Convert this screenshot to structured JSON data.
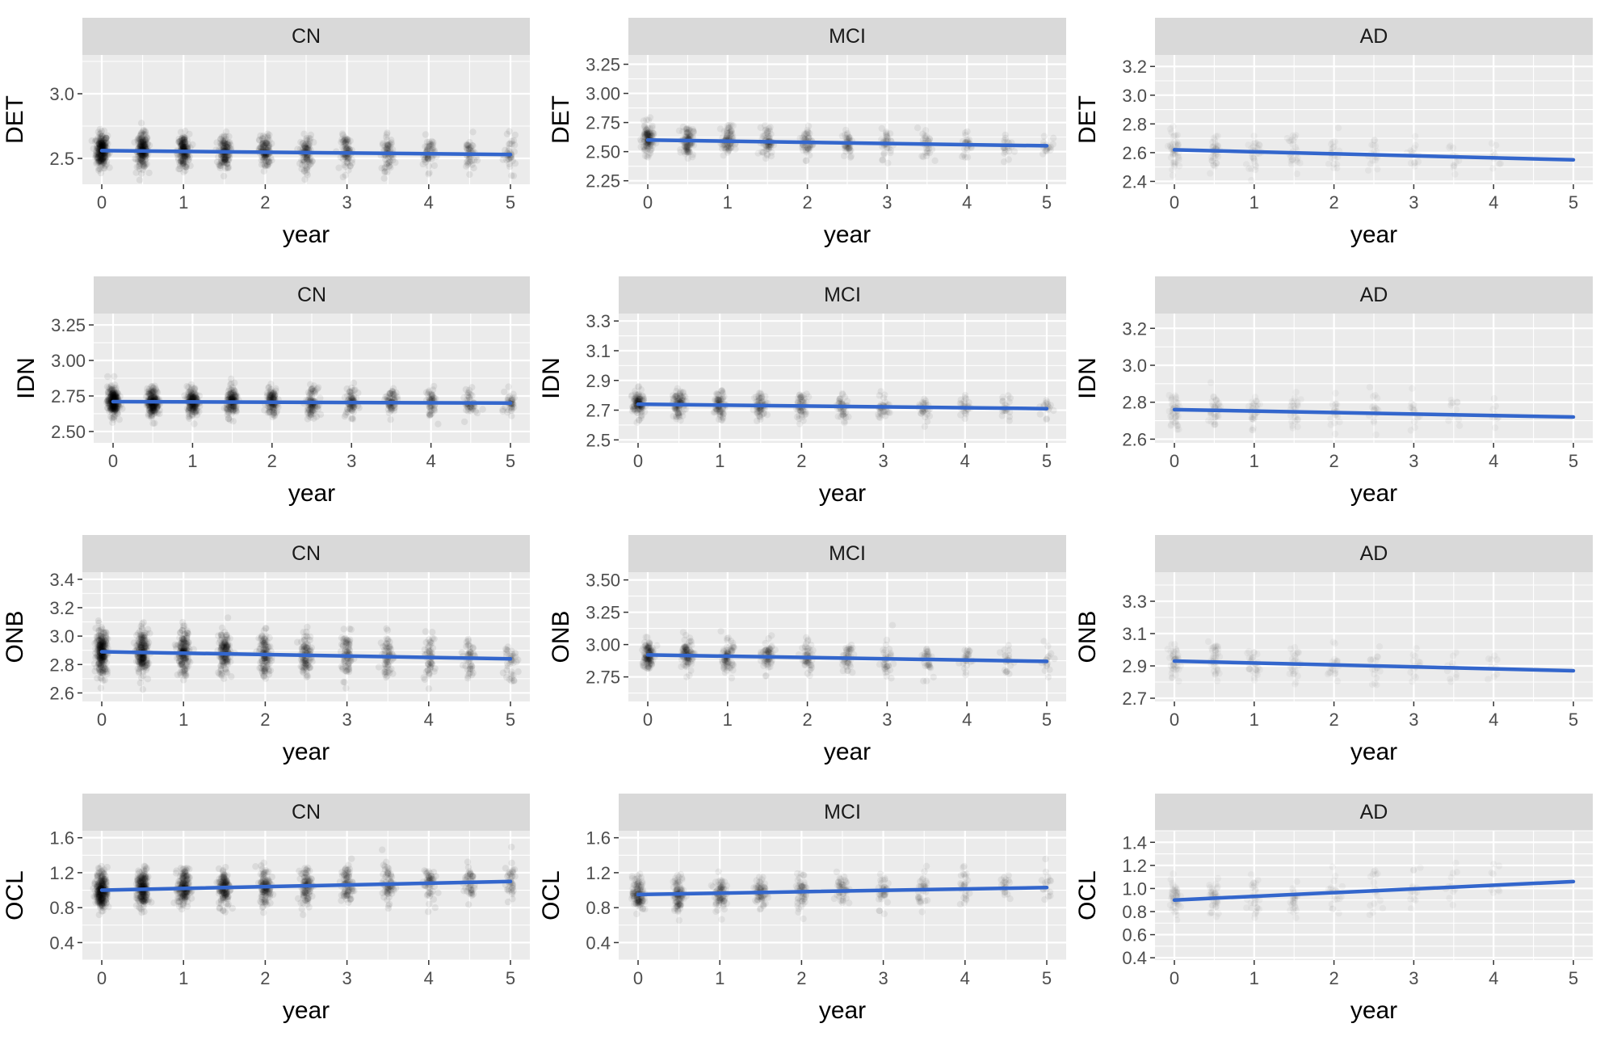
{
  "chart_data": [
    {
      "type": "scatter",
      "panel": "CN",
      "ylabel": "DET",
      "xlabel": "year",
      "xlim": [
        0,
        5
      ],
      "ylim": [
        2.3,
        3.3
      ],
      "yticks": [
        2.5,
        3.0
      ],
      "xticks": [
        0,
        1,
        2,
        3,
        4,
        5
      ],
      "x_visits": [
        0,
        0.5,
        1,
        1.5,
        2,
        2.5,
        3,
        3.5,
        4,
        4.5,
        5
      ],
      "point_center": 2.56,
      "point_spread": 0.12,
      "point_density": "dense",
      "fit_line": {
        "x": [
          0,
          5
        ],
        "y": [
          2.56,
          2.53
        ]
      }
    },
    {
      "type": "scatter",
      "panel": "MCI",
      "ylabel": "DET",
      "xlabel": "year",
      "xlim": [
        0,
        5
      ],
      "ylim": [
        2.22,
        3.33
      ],
      "yticks": [
        2.25,
        2.5,
        2.75,
        3.0,
        3.25
      ],
      "yticklabels": [
        "2.25",
        "2.50",
        "2.75",
        "3.00",
        "3.25"
      ],
      "xticks": [
        0,
        1,
        2,
        3,
        4,
        5
      ],
      "x_visits": [
        0,
        0.5,
        1,
        1.5,
        2,
        2.5,
        3,
        3.5,
        4,
        4.5,
        5
      ],
      "point_center": 2.58,
      "point_spread": 0.12,
      "point_density": "medium",
      "fit_line": {
        "x": [
          0,
          5
        ],
        "y": [
          2.6,
          2.55
        ]
      }
    },
    {
      "type": "scatter",
      "panel": "AD",
      "ylabel": "DET",
      "xlabel": "year",
      "xlim": [
        0,
        5
      ],
      "ylim": [
        2.38,
        3.28
      ],
      "yticks": [
        2.4,
        2.6,
        2.8,
        3.0,
        3.2
      ],
      "xticks": [
        0,
        1,
        2,
        3,
        4,
        5
      ],
      "x_visits": [
        0,
        0.5,
        1,
        1.5,
        2,
        2.5,
        3,
        3.5,
        4
      ],
      "point_center": 2.6,
      "point_spread": 0.12,
      "point_density": "sparse",
      "fit_line": {
        "x": [
          0,
          5
        ],
        "y": [
          2.62,
          2.55
        ]
      }
    },
    {
      "type": "scatter",
      "panel": "CN",
      "ylabel": "IDN",
      "xlabel": "year",
      "xlim": [
        0,
        5
      ],
      "ylim": [
        2.42,
        3.33
      ],
      "yticks": [
        2.5,
        2.75,
        3.0,
        3.25
      ],
      "yticklabels": [
        "2.50",
        "2.75",
        "3.00",
        "3.25"
      ],
      "xticks": [
        0,
        1,
        2,
        3,
        4,
        5
      ],
      "x_visits": [
        0,
        0.5,
        1,
        1.5,
        2,
        2.5,
        3,
        3.5,
        4,
        4.5,
        5
      ],
      "point_center": 2.71,
      "point_spread": 0.09,
      "point_density": "dense",
      "fit_line": {
        "x": [
          0,
          5
        ],
        "y": [
          2.71,
          2.7
        ]
      }
    },
    {
      "type": "scatter",
      "panel": "MCI",
      "ylabel": "IDN",
      "xlabel": "year",
      "xlim": [
        0,
        5
      ],
      "ylim": [
        2.48,
        3.35
      ],
      "yticks": [
        2.5,
        2.7,
        2.9,
        3.1,
        3.3
      ],
      "xticks": [
        0,
        1,
        2,
        3,
        4,
        5
      ],
      "x_visits": [
        0,
        0.5,
        1,
        1.5,
        2,
        2.5,
        3,
        3.5,
        4,
        4.5,
        5
      ],
      "point_center": 2.72,
      "point_spread": 0.08,
      "point_density": "medium",
      "fit_line": {
        "x": [
          0,
          5
        ],
        "y": [
          2.74,
          2.71
        ]
      }
    },
    {
      "type": "scatter",
      "panel": "AD",
      "ylabel": "IDN",
      "xlabel": "year",
      "xlim": [
        0,
        5
      ],
      "ylim": [
        2.58,
        3.28
      ],
      "yticks": [
        2.6,
        2.8,
        3.0,
        3.2
      ],
      "xticks": [
        0,
        1,
        2,
        3,
        4,
        5
      ],
      "x_visits": [
        0,
        0.5,
        1,
        1.5,
        2,
        2.5,
        3,
        3.5,
        4
      ],
      "point_center": 2.74,
      "point_spread": 0.09,
      "point_density": "sparse",
      "fit_line": {
        "x": [
          0,
          5
        ],
        "y": [
          2.76,
          2.72
        ]
      }
    },
    {
      "type": "scatter",
      "panel": "CN",
      "ylabel": "ONB",
      "xlabel": "year",
      "xlim": [
        0,
        5
      ],
      "ylim": [
        2.54,
        3.45
      ],
      "yticks": [
        2.6,
        2.8,
        3.0,
        3.2,
        3.4
      ],
      "xticks": [
        0,
        1,
        2,
        3,
        4,
        5
      ],
      "x_visits": [
        0,
        0.5,
        1,
        1.5,
        2,
        2.5,
        3,
        3.5,
        4,
        4.5,
        5
      ],
      "point_center": 2.88,
      "point_spread": 0.14,
      "point_density": "dense",
      "fit_line": {
        "x": [
          0,
          5
        ],
        "y": [
          2.89,
          2.84
        ]
      }
    },
    {
      "type": "scatter",
      "panel": "MCI",
      "ylabel": "ONB",
      "xlabel": "year",
      "xlim": [
        0,
        5
      ],
      "ylim": [
        2.56,
        3.56
      ],
      "yticks": [
        2.75,
        3.0,
        3.25,
        3.5
      ],
      "yticklabels": [
        "2.75",
        "3.00",
        "3.25",
        "3.50"
      ],
      "xticks": [
        0,
        1,
        2,
        3,
        4,
        5
      ],
      "x_visits": [
        0,
        0.5,
        1,
        1.5,
        2,
        2.5,
        3,
        3.5,
        4,
        4.5,
        5
      ],
      "point_center": 2.9,
      "point_spread": 0.11,
      "point_density": "medium",
      "fit_line": {
        "x": [
          0,
          5
        ],
        "y": [
          2.92,
          2.87
        ]
      }
    },
    {
      "type": "scatter",
      "panel": "AD",
      "ylabel": "ONB",
      "xlabel": "year",
      "xlim": [
        0,
        5
      ],
      "ylim": [
        2.68,
        3.48
      ],
      "yticks": [
        2.7,
        2.9,
        3.1,
        3.3
      ],
      "xticks": [
        0,
        1,
        2,
        3,
        4,
        5
      ],
      "x_visits": [
        0,
        0.5,
        1,
        1.5,
        2,
        2.5,
        3,
        3.5,
        4
      ],
      "point_center": 2.92,
      "point_spread": 0.1,
      "point_density": "sparse",
      "fit_line": {
        "x": [
          0,
          5
        ],
        "y": [
          2.93,
          2.87
        ]
      }
    },
    {
      "type": "scatter",
      "panel": "CN",
      "ylabel": "OCL",
      "xlabel": "year",
      "xlim": [
        0,
        5
      ],
      "ylim": [
        0.2,
        1.68
      ],
      "yticks": [
        0.4,
        0.8,
        1.2,
        1.6
      ],
      "xticks": [
        0,
        1,
        2,
        3,
        4,
        5
      ],
      "x_visits": [
        0,
        0.5,
        1,
        1.5,
        2,
        2.5,
        3,
        3.5,
        4,
        4.5,
        5
      ],
      "point_center": 1.02,
      "point_spread": 0.2,
      "point_density": "dense",
      "fit_line": {
        "x": [
          0,
          5
        ],
        "y": [
          1.0,
          1.1
        ]
      }
    },
    {
      "type": "scatter",
      "panel": "MCI",
      "ylabel": "OCL",
      "xlabel": "year",
      "xlim": [
        0,
        5
      ],
      "ylim": [
        0.2,
        1.68
      ],
      "yticks": [
        0.4,
        0.8,
        1.2,
        1.6
      ],
      "xticks": [
        0,
        1,
        2,
        3,
        4,
        5
      ],
      "x_visits": [
        0,
        0.5,
        1,
        1.5,
        2,
        2.5,
        3,
        3.5,
        4,
        4.5,
        5
      ],
      "point_center": 0.98,
      "point_spread": 0.18,
      "point_density": "medium",
      "fit_line": {
        "x": [
          0,
          5
        ],
        "y": [
          0.95,
          1.03
        ]
      }
    },
    {
      "type": "scatter",
      "panel": "AD",
      "ylabel": "OCL",
      "xlabel": "year",
      "xlim": [
        0,
        5
      ],
      "ylim": [
        0.38,
        1.5
      ],
      "yticks": [
        0.4,
        0.6,
        0.8,
        1.0,
        1.2,
        1.4
      ],
      "xticks": [
        0,
        1,
        2,
        3,
        4,
        5
      ],
      "x_visits": [
        0,
        0.5,
        1,
        1.5,
        2,
        2.5,
        3,
        3.5,
        4
      ],
      "point_center": 0.95,
      "point_spread": 0.16,
      "point_density": "sparse",
      "fit_line": {
        "x": [
          0,
          5
        ],
        "y": [
          0.9,
          1.06
        ]
      }
    }
  ],
  "colors": {
    "panel_background": "#ebebeb",
    "strip_background": "#d9d9d9",
    "grid": "#ffffff",
    "points": "#000000",
    "fit_line": "#3366cc",
    "text": "#1a1a1a",
    "tick_text": "#4d4d4d"
  }
}
